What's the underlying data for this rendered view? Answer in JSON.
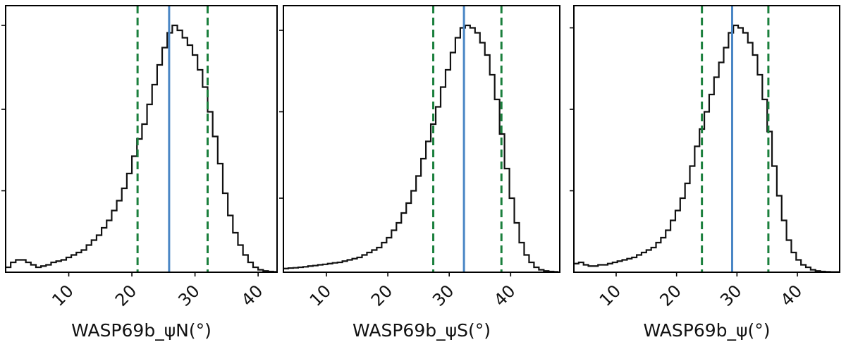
{
  "chart_data": [
    {
      "type": "histogram",
      "xlabel": "WASP69b_ψN(°)",
      "xlim": [
        0,
        43
      ],
      "xticks": [
        10,
        20,
        30,
        40
      ],
      "yticks": [
        0.33,
        0.66,
        1.0
      ],
      "ytick_labels_shown": false,
      "median": 25.9,
      "lower_1sigma": 20.9,
      "upper_1sigma": 32.0,
      "colors": {
        "median": "#4a86c5",
        "sigma": "#1a7f3c",
        "hist": "#111111"
      },
      "bin_width": 0.8,
      "x": [
        0.0,
        0.8,
        1.6,
        2.4,
        3.2,
        4.0,
        4.8,
        5.6,
        6.4,
        7.2,
        8.0,
        8.8,
        9.6,
        10.4,
        11.2,
        12.0,
        12.8,
        13.6,
        14.4,
        15.2,
        16.0,
        16.8,
        17.6,
        18.4,
        19.2,
        20.0,
        20.8,
        21.6,
        22.4,
        23.2,
        24.0,
        24.8,
        25.6,
        26.4,
        27.2,
        28.0,
        28.8,
        29.6,
        30.4,
        31.2,
        32.0,
        32.8,
        33.6,
        34.4,
        35.2,
        36.0,
        36.8,
        37.6,
        38.4,
        39.2,
        40.0,
        40.8,
        41.6,
        42.4
      ],
      "values": [
        0.02,
        0.04,
        0.05,
        0.05,
        0.04,
        0.03,
        0.02,
        0.025,
        0.03,
        0.04,
        0.045,
        0.05,
        0.06,
        0.07,
        0.08,
        0.09,
        0.11,
        0.13,
        0.15,
        0.18,
        0.21,
        0.25,
        0.29,
        0.34,
        0.4,
        0.47,
        0.54,
        0.6,
        0.68,
        0.76,
        0.84,
        0.91,
        0.97,
        1.0,
        0.98,
        0.95,
        0.92,
        0.88,
        0.82,
        0.75,
        0.65,
        0.55,
        0.44,
        0.32,
        0.23,
        0.16,
        0.11,
        0.07,
        0.04,
        0.02,
        0.01,
        0.005,
        0.003,
        0.002
      ],
      "ylim": [
        0,
        1.08
      ]
    },
    {
      "type": "histogram",
      "xlabel": "WASP69b_ψS(°)",
      "xlim": [
        3,
        48
      ],
      "xticks": [
        10,
        20,
        30,
        40
      ],
      "yticks": [
        0.3,
        0.65,
        0.98
      ],
      "ytick_labels_shown": false,
      "median": 32.4,
      "lower_1sigma": 27.4,
      "upper_1sigma": 38.5,
      "colors": {
        "median": "#4a86c5",
        "sigma": "#1a7f3c",
        "hist": "#111111"
      },
      "bin_width": 0.8,
      "x": [
        3.0,
        3.8,
        4.6,
        5.4,
        6.2,
        7.0,
        7.8,
        8.6,
        9.4,
        10.2,
        11.0,
        11.8,
        12.6,
        13.4,
        14.2,
        15.0,
        15.8,
        16.6,
        17.4,
        18.2,
        19.0,
        19.8,
        20.6,
        21.4,
        22.2,
        23.0,
        23.8,
        24.6,
        25.4,
        26.2,
        27.0,
        27.8,
        28.6,
        29.4,
        30.2,
        31.0,
        31.8,
        32.6,
        33.4,
        34.2,
        35.0,
        35.8,
        36.6,
        37.4,
        38.2,
        39.0,
        39.8,
        40.6,
        41.4,
        42.2,
        43.0,
        43.8,
        44.6,
        45.4,
        46.2,
        47.0
      ],
      "values": [
        0.015,
        0.017,
        0.018,
        0.02,
        0.022,
        0.025,
        0.027,
        0.03,
        0.032,
        0.035,
        0.038,
        0.04,
        0.045,
        0.05,
        0.055,
        0.06,
        0.07,
        0.08,
        0.09,
        0.1,
        0.12,
        0.14,
        0.17,
        0.2,
        0.24,
        0.28,
        0.33,
        0.39,
        0.46,
        0.53,
        0.6,
        0.67,
        0.75,
        0.82,
        0.89,
        0.95,
        0.99,
        1.0,
        0.99,
        0.97,
        0.93,
        0.88,
        0.8,
        0.7,
        0.56,
        0.42,
        0.3,
        0.2,
        0.12,
        0.07,
        0.04,
        0.02,
        0.01,
        0.005,
        0.003,
        0.002
      ],
      "ylim": [
        0,
        1.08
      ]
    },
    {
      "type": "histogram",
      "xlabel": "WASP69b_ψ(°)",
      "xlim": [
        3,
        47
      ],
      "xticks": [
        10,
        20,
        30,
        40
      ],
      "yticks": [
        0.33,
        0.66,
        0.99
      ],
      "ytick_labels_shown": false,
      "median": 29.2,
      "lower_1sigma": 24.2,
      "upper_1sigma": 35.2,
      "colors": {
        "median": "#4a86c5",
        "sigma": "#1a7f3c",
        "hist": "#111111"
      },
      "bin_width": 0.8,
      "x": [
        3.0,
        3.8,
        4.6,
        5.4,
        6.2,
        7.0,
        7.8,
        8.6,
        9.4,
        10.2,
        11.0,
        11.8,
        12.6,
        13.4,
        14.2,
        15.0,
        15.8,
        16.6,
        17.4,
        18.2,
        19.0,
        19.8,
        20.6,
        21.4,
        22.2,
        23.0,
        23.8,
        24.6,
        25.4,
        26.2,
        27.0,
        27.8,
        28.6,
        29.4,
        30.2,
        31.0,
        31.8,
        32.6,
        33.4,
        34.2,
        35.0,
        35.8,
        36.6,
        37.4,
        38.2,
        39.0,
        39.8,
        40.6,
        41.4,
        42.2,
        43.0,
        43.8,
        44.6,
        45.4,
        46.2
      ],
      "values": [
        0.035,
        0.04,
        0.03,
        0.025,
        0.025,
        0.03,
        0.03,
        0.035,
        0.04,
        0.045,
        0.05,
        0.055,
        0.06,
        0.07,
        0.08,
        0.09,
        0.1,
        0.12,
        0.14,
        0.17,
        0.21,
        0.25,
        0.3,
        0.36,
        0.43,
        0.51,
        0.58,
        0.65,
        0.72,
        0.79,
        0.85,
        0.91,
        0.97,
        1.0,
        0.99,
        0.97,
        0.93,
        0.88,
        0.8,
        0.7,
        0.57,
        0.43,
        0.31,
        0.21,
        0.13,
        0.08,
        0.05,
        0.03,
        0.02,
        0.01,
        0.005,
        0.003,
        0.002,
        0.001,
        0.001
      ],
      "ylim": [
        0,
        1.08
      ]
    }
  ]
}
